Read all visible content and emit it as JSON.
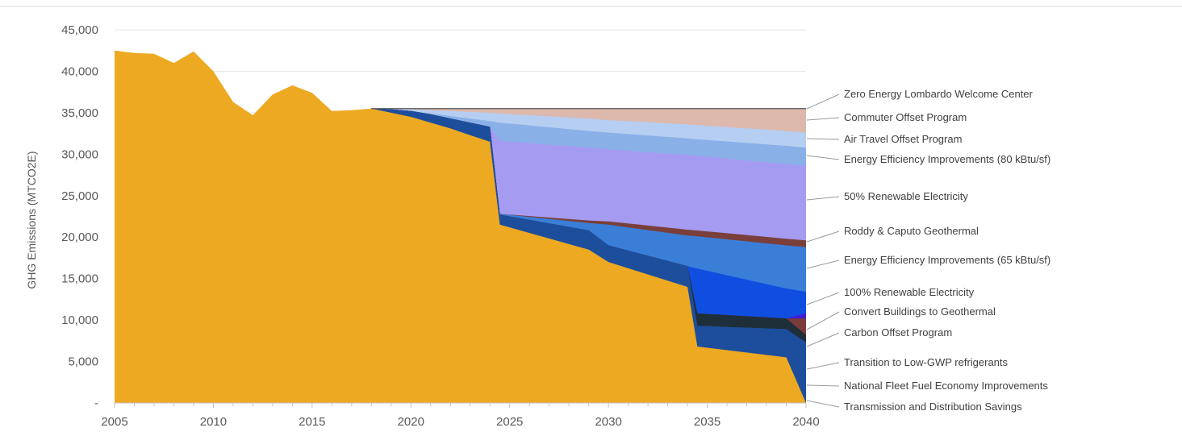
{
  "chart_data": {
    "type": "area",
    "stacked": true,
    "ylabel": "GHG Emissions (MTCO2E)",
    "xlabel": "",
    "title": "",
    "xlim": [
      2005,
      2040
    ],
    "ylim": [
      0,
      45000
    ],
    "x_ticks": [
      "2005",
      "2010",
      "2015",
      "2020",
      "2025",
      "2030",
      "2035",
      "2040"
    ],
    "y_ticks": [
      "45,000",
      "40,000",
      "35,000",
      "30,000",
      "25,000",
      "20,000",
      "15,000",
      "10,000",
      "5,000",
      "-"
    ],
    "legend_placement": "right",
    "grid": "horizontal",
    "baseline": {
      "color": "#EDA921",
      "points": [
        [
          2005,
          42500
        ],
        [
          2006,
          42200
        ],
        [
          2007,
          42100
        ],
        [
          2008,
          41000
        ],
        [
          2009,
          42400
        ],
        [
          2010,
          40000
        ],
        [
          2011,
          36300
        ],
        [
          2012,
          34700
        ],
        [
          2013,
          37200
        ],
        [
          2014,
          38300
        ],
        [
          2015,
          37400
        ],
        [
          2016,
          35200
        ],
        [
          2017,
          35300
        ],
        [
          2018,
          35500
        ],
        [
          2019,
          35000
        ],
        [
          2020,
          34500
        ],
        [
          2021,
          33800
        ],
        [
          2022,
          33100
        ],
        [
          2023,
          32300
        ],
        [
          2024,
          31500
        ],
        [
          2024.5,
          21500
        ],
        [
          2029,
          18500
        ],
        [
          2030,
          17000
        ],
        [
          2034,
          14000
        ],
        [
          2034.5,
          6800
        ],
        [
          2039,
          5500
        ],
        [
          2040,
          0
        ]
      ]
    },
    "series": [
      {
        "name": "Transmission and Distribution Savings",
        "color": "#1D4E9C",
        "points": [
          [
            2018,
            35500
          ],
          [
            2019,
            35400
          ],
          [
            2020,
            35200
          ],
          [
            2021,
            34800
          ],
          [
            2022,
            34300
          ],
          [
            2023,
            33800
          ],
          [
            2024,
            33300
          ],
          [
            2024.5,
            22700
          ],
          [
            2029,
            20800
          ],
          [
            2030,
            19000
          ],
          [
            2034,
            16500
          ],
          [
            2034.5,
            9300
          ],
          [
            2039,
            8900
          ],
          [
            2040,
            7300
          ]
        ]
      },
      {
        "name": "National Fleet Fuel Economy Improvements",
        "color": "#264E72",
        "points": [
          [
            2018,
            35500
          ],
          [
            2019,
            35400
          ],
          [
            2020,
            35200
          ],
          [
            2021,
            34800
          ],
          [
            2022,
            34300
          ],
          [
            2023,
            33800
          ],
          [
            2024,
            33300
          ],
          [
            2024.5,
            22700
          ],
          [
            2029,
            20800
          ],
          [
            2030,
            19000
          ],
          [
            2034,
            16500
          ],
          [
            2034.5,
            9300
          ],
          [
            2039,
            8900
          ],
          [
            2040,
            7300
          ]
        ]
      },
      {
        "name": "Transition to Low-GWP refrigerants",
        "color": "#1F2F3A",
        "points": [
          [
            2018,
            35500
          ],
          [
            2019,
            35400
          ],
          [
            2020,
            35200
          ],
          [
            2021,
            34800
          ],
          [
            2022,
            34300
          ],
          [
            2023,
            33800
          ],
          [
            2024,
            33300
          ],
          [
            2024.5,
            22700
          ],
          [
            2029,
            20800
          ],
          [
            2030,
            19000
          ],
          [
            2034,
            16500
          ],
          [
            2034.5,
            10800
          ],
          [
            2039,
            10200
          ],
          [
            2040,
            8200
          ]
        ]
      },
      {
        "name": "Carbon Offset Program",
        "color": "#7A3B3A",
        "points": [
          [
            2018,
            35500
          ],
          [
            2019,
            35400
          ],
          [
            2020,
            35200
          ],
          [
            2021,
            34800
          ],
          [
            2022,
            34300
          ],
          [
            2023,
            33800
          ],
          [
            2024,
            33300
          ],
          [
            2024.5,
            22700
          ],
          [
            2029,
            20800
          ],
          [
            2030,
            19000
          ],
          [
            2034,
            16500
          ],
          [
            2034.5,
            10800
          ],
          [
            2039,
            10200
          ],
          [
            2040,
            10200
          ]
        ]
      },
      {
        "name": "Convert Buildings to Geothermal",
        "color": "#3F1ED6",
        "points": [
          [
            2018,
            35500
          ],
          [
            2019,
            35400
          ],
          [
            2020,
            35200
          ],
          [
            2021,
            34800
          ],
          [
            2022,
            34300
          ],
          [
            2023,
            33800
          ],
          [
            2024,
            33300
          ],
          [
            2024.5,
            22700
          ],
          [
            2029,
            20800
          ],
          [
            2030,
            19000
          ],
          [
            2034,
            16500
          ],
          [
            2034.5,
            10800
          ],
          [
            2039,
            10200
          ],
          [
            2040,
            10800
          ]
        ]
      },
      {
        "name": "100% Renewable Electricity",
        "color": "#0F4EE0",
        "points": [
          [
            2018,
            35500
          ],
          [
            2019,
            35400
          ],
          [
            2020,
            35200
          ],
          [
            2021,
            34800
          ],
          [
            2022,
            34300
          ],
          [
            2023,
            33800
          ],
          [
            2024,
            33300
          ],
          [
            2024.5,
            22700
          ],
          [
            2029,
            20800
          ],
          [
            2030,
            19000
          ],
          [
            2034,
            16500
          ],
          [
            2034.5,
            16200
          ],
          [
            2039,
            13800
          ],
          [
            2040,
            13400
          ]
        ]
      },
      {
        "name": "Energy Efficiency Improvements (65 kBtu/sf)",
        "color": "#3A7ED8",
        "points": [
          [
            2018,
            35500
          ],
          [
            2019,
            35400
          ],
          [
            2020,
            35200
          ],
          [
            2021,
            34800
          ],
          [
            2022,
            34300
          ],
          [
            2023,
            33800
          ],
          [
            2024,
            33300
          ],
          [
            2024.5,
            22800
          ],
          [
            2029,
            21700
          ],
          [
            2030,
            21500
          ],
          [
            2034,
            20200
          ],
          [
            2034.5,
            20100
          ],
          [
            2039,
            19000
          ],
          [
            2040,
            18800
          ]
        ]
      },
      {
        "name": "Roddy & Caputo Geothermal",
        "color": "#7A3F3A",
        "points": [
          [
            2018,
            35500
          ],
          [
            2019,
            35400
          ],
          [
            2020,
            35200
          ],
          [
            2021,
            34800
          ],
          [
            2022,
            34300
          ],
          [
            2023,
            33800
          ],
          [
            2024,
            33300
          ],
          [
            2024.5,
            22800
          ],
          [
            2029,
            22000
          ],
          [
            2030,
            21900
          ],
          [
            2034,
            20900
          ],
          [
            2034.5,
            20800
          ],
          [
            2039,
            19800
          ],
          [
            2040,
            19600
          ]
        ]
      },
      {
        "name": "50% Renewable Electricity",
        "color": "#A59CF2",
        "points": [
          [
            2018,
            35500
          ],
          [
            2019,
            35400
          ],
          [
            2020,
            35200
          ],
          [
            2021,
            34800
          ],
          [
            2022,
            34300
          ],
          [
            2023,
            33800
          ],
          [
            2024,
            33300
          ],
          [
            2024.5,
            31600
          ],
          [
            2029,
            30800
          ],
          [
            2030,
            30600
          ],
          [
            2034,
            29900
          ],
          [
            2034.5,
            29800
          ],
          [
            2039,
            28800
          ],
          [
            2040,
            28600
          ]
        ]
      },
      {
        "name": "Energy Efficiency Improvements (80 kBtu/sf)",
        "color": "#8AB0E8",
        "points": [
          [
            2018,
            35500
          ],
          [
            2019,
            35400
          ],
          [
            2020,
            35200
          ],
          [
            2021,
            34900
          ],
          [
            2022,
            34600
          ],
          [
            2023,
            34300
          ],
          [
            2024,
            34000
          ],
          [
            2024.5,
            33800
          ],
          [
            2029,
            32800
          ],
          [
            2030,
            32600
          ],
          [
            2034,
            31900
          ],
          [
            2034.5,
            31800
          ],
          [
            2039,
            31000
          ],
          [
            2040,
            30800
          ]
        ]
      },
      {
        "name": "Air Travel Offset Program",
        "color": "#B6CEF2",
        "points": [
          [
            2018,
            35500
          ],
          [
            2019,
            35450
          ],
          [
            2020,
            35400
          ],
          [
            2021,
            35300
          ],
          [
            2022,
            35200
          ],
          [
            2023,
            35100
          ],
          [
            2024,
            35000
          ],
          [
            2024.5,
            34900
          ],
          [
            2029,
            34300
          ],
          [
            2030,
            34100
          ],
          [
            2034,
            33600
          ],
          [
            2034.5,
            33500
          ],
          [
            2039,
            32800
          ],
          [
            2040,
            32600
          ]
        ]
      },
      {
        "name": "Commuter Offset Program",
        "color": "#DDB8AC",
        "points": [
          [
            2018,
            35500
          ],
          [
            2019,
            35500
          ],
          [
            2020,
            35500
          ],
          [
            2021,
            35500
          ],
          [
            2022,
            35500
          ],
          [
            2023,
            35500
          ],
          [
            2024,
            35500
          ],
          [
            2024.5,
            35500
          ],
          [
            2029,
            35500
          ],
          [
            2030,
            35500
          ],
          [
            2034,
            35500
          ],
          [
            2034.5,
            35500
          ],
          [
            2039,
            35500
          ],
          [
            2040,
            35500
          ]
        ]
      },
      {
        "name": "Zero Energy Lombardo Welcome Center",
        "color": "#55565A",
        "points": [
          [
            2018,
            35500
          ],
          [
            2019,
            35500
          ],
          [
            2020,
            35500
          ],
          [
            2021,
            35500
          ],
          [
            2022,
            35500
          ],
          [
            2023,
            35500
          ],
          [
            2024,
            35500
          ],
          [
            2024.5,
            35500
          ],
          [
            2029,
            35500
          ],
          [
            2030,
            35500
          ],
          [
            2034,
            35500
          ],
          [
            2034.5,
            35500
          ],
          [
            2039,
            35500
          ],
          [
            2040,
            35500
          ]
        ]
      }
    ]
  }
}
